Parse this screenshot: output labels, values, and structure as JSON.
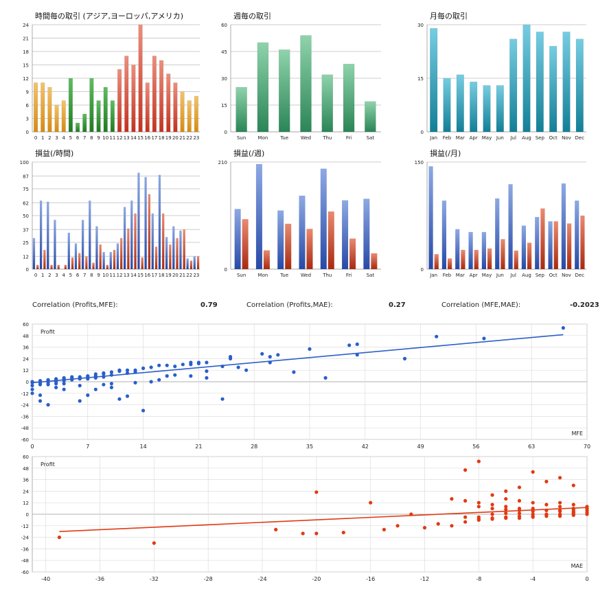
{
  "colors": {
    "orange": "#e3981b",
    "green": "#2e9532",
    "red": "#d2402d",
    "sea_green_top": "#8fd3ab",
    "sea_green_bottom": "#2a8556",
    "teal_top": "#76cde2",
    "teal_bottom": "#127f97",
    "blue_top": "#8ea9e3",
    "blue_bottom": "#2649a6",
    "red_top": "#e98b70",
    "red_bottom": "#a82a10",
    "scatter_blue": "#2a5fc9",
    "scatter_red": "#e03a12",
    "grid": "#bbbbbb"
  },
  "correlations": [
    {
      "label": "Correlation (Profits,MFE):",
      "value": "0.79"
    },
    {
      "label": "Correlation (Profits,MAE):",
      "value": "0.27"
    },
    {
      "label": "Correlation (MFE,MAE):",
      "value": "-0.2023"
    }
  ],
  "chart_data": [
    {
      "id": "hourly_trades",
      "type": "bar",
      "title": "時間毎の取引 (アジア,ヨーロッパ,アメリカ)",
      "ylim": [
        0,
        24
      ],
      "yticks": [
        "0",
        "3",
        "6",
        "9",
        "12",
        "15",
        "18",
        "21",
        "24"
      ],
      "categories": [
        "0",
        "1",
        "2",
        "3",
        "4",
        "5",
        "6",
        "7",
        "8",
        "9",
        "10",
        "11",
        "12",
        "13",
        "14",
        "15",
        "16",
        "17",
        "18",
        "19",
        "20",
        "21",
        "22",
        "23"
      ],
      "values": [
        11,
        11,
        10,
        6,
        7,
        12,
        2,
        4,
        12,
        7,
        10,
        7,
        14,
        17,
        15,
        24,
        11,
        17,
        16,
        13,
        11,
        9,
        7,
        8
      ],
      "session_colors": [
        "orange",
        "orange",
        "orange",
        "orange",
        "orange",
        "green",
        "green",
        "green",
        "green",
        "green",
        "green",
        "green",
        "red",
        "red",
        "red",
        "red",
        "red",
        "red",
        "red",
        "red",
        "red",
        "orange",
        "orange",
        "orange"
      ]
    },
    {
      "id": "weekday_trades",
      "type": "bar",
      "title": "週毎の取引",
      "ylim": [
        0,
        60
      ],
      "yticks": [
        "0",
        "15",
        "30",
        "45",
        "60"
      ],
      "categories": [
        "Sun",
        "Mon",
        "Tue",
        "Wed",
        "Thu",
        "Fri",
        "Sat"
      ],
      "values": [
        25,
        50,
        46,
        54,
        32,
        38,
        17
      ]
    },
    {
      "id": "monthly_trades",
      "type": "bar",
      "title": "月毎の取引",
      "ylim": [
        0,
        30
      ],
      "yticks": [
        "0",
        "15",
        "30"
      ],
      "categories": [
        "Jan",
        "Feb",
        "Mar",
        "Apr",
        "May",
        "Jun",
        "Jul",
        "Aug",
        "Sep",
        "Oct",
        "Nov",
        "Dec"
      ],
      "values": [
        29,
        15,
        16,
        14,
        13,
        13,
        26,
        30,
        28,
        24,
        28,
        26
      ]
    },
    {
      "id": "hourly_pnl",
      "type": "bar",
      "title": "損益(/時間)",
      "ylim": [
        0,
        100
      ],
      "yticks": [
        "0",
        "12",
        "25",
        "37",
        "50",
        "62",
        "75",
        "87",
        "100"
      ],
      "categories": [
        "0",
        "1",
        "2",
        "3",
        "4",
        "5",
        "6",
        "7",
        "8",
        "9",
        "10",
        "11",
        "12",
        "13",
        "14",
        "15",
        "16",
        "17",
        "18",
        "19",
        "20",
        "21",
        "22",
        "23"
      ],
      "series": [
        {
          "name": "profit",
          "values": [
            29,
            64,
            63,
            46,
            0,
            34,
            24,
            46,
            64,
            40,
            16,
            16,
            24,
            58,
            64,
            90,
            86,
            52,
            88,
            30,
            40,
            36,
            10,
            12
          ]
        },
        {
          "name": "loss",
          "values": [
            4,
            18,
            4,
            4,
            4,
            11,
            15,
            12,
            6,
            23,
            4,
            18,
            29,
            38,
            52,
            11,
            70,
            21,
            52,
            23,
            29,
            37,
            8,
            12
          ]
        }
      ]
    },
    {
      "id": "weekday_pnl",
      "type": "bar",
      "title": "損益(/週)",
      "ylim": [
        0,
        210
      ],
      "yticks": [
        "0",
        "210"
      ],
      "categories": [
        "Sun",
        "Mon",
        "Tue",
        "Wed",
        "Thu",
        "Fri",
        "Sat"
      ],
      "series": [
        {
          "name": "profit",
          "values": [
            118,
            206,
            115,
            144,
            197,
            135,
            138
          ]
        },
        {
          "name": "loss",
          "values": [
            98,
            37,
            89,
            79,
            113,
            60,
            31
          ]
        }
      ]
    },
    {
      "id": "monthly_pnl",
      "type": "bar",
      "title": "損益(/月)",
      "ylim": [
        0,
        150
      ],
      "yticks": [
        "0",
        "150"
      ],
      "categories": [
        "Jan",
        "Feb",
        "Mar",
        "Apr",
        "May",
        "Jun",
        "Jul",
        "Aug",
        "Sep",
        "Oct",
        "Nov",
        "Dec"
      ],
      "series": [
        {
          "name": "profit",
          "values": [
            144,
            96,
            56,
            52,
            52,
            99,
            119,
            61,
            73,
            67,
            120,
            96
          ]
        },
        {
          "name": "loss",
          "values": [
            21,
            15,
            27,
            27,
            29,
            42,
            26,
            37,
            85,
            67,
            64,
            75
          ]
        }
      ]
    },
    {
      "id": "profit_vs_mfe",
      "type": "scatter",
      "ylabel": "Profit",
      "xlabel": "MFE",
      "xlim": [
        0,
        70
      ],
      "ylim": [
        -60,
        60
      ],
      "xticks": [
        "0",
        "7",
        "14",
        "21",
        "28",
        "35",
        "42",
        "49",
        "56",
        "63",
        "70"
      ],
      "yticks": [
        "-60",
        "-48",
        "-36",
        "-24",
        "-12",
        "0",
        "12",
        "24",
        "36",
        "48",
        "60"
      ],
      "trendline": [
        [
          0,
          -1
        ],
        [
          67,
          49
        ]
      ],
      "points": [
        [
          67,
          56
        ],
        [
          51,
          47
        ],
        [
          57,
          45
        ],
        [
          40,
          38
        ],
        [
          41,
          39
        ],
        [
          35,
          34
        ],
        [
          31,
          28
        ],
        [
          30,
          26
        ],
        [
          29,
          29
        ],
        [
          41,
          28
        ],
        [
          47,
          24
        ],
        [
          25,
          24
        ],
        [
          25,
          26
        ],
        [
          22,
          20
        ],
        [
          21,
          19
        ],
        [
          20,
          18
        ],
        [
          21,
          20
        ],
        [
          20,
          20
        ],
        [
          18,
          16
        ],
        [
          19,
          18
        ],
        [
          24,
          16
        ],
        [
          16,
          17
        ],
        [
          17,
          17
        ],
        [
          15,
          15
        ],
        [
          14,
          14
        ],
        [
          13,
          12
        ],
        [
          12,
          12
        ],
        [
          11,
          11
        ],
        [
          11,
          12
        ],
        [
          10,
          10
        ],
        [
          9,
          8
        ],
        [
          8,
          8
        ],
        [
          9,
          9
        ],
        [
          7,
          6
        ],
        [
          6,
          5
        ],
        [
          5,
          5
        ],
        [
          4,
          4
        ],
        [
          3,
          3
        ],
        [
          2,
          2
        ],
        [
          1,
          1
        ],
        [
          2,
          1
        ],
        [
          1,
          0
        ],
        [
          3,
          2
        ],
        [
          4,
          3
        ],
        [
          5,
          4
        ],
        [
          6,
          4
        ],
        [
          7,
          5
        ],
        [
          8,
          6
        ],
        [
          10,
          7
        ],
        [
          12,
          9
        ],
        [
          13,
          10
        ],
        [
          22,
          11
        ],
        [
          27,
          12
        ],
        [
          26,
          15
        ],
        [
          30,
          20
        ],
        [
          33,
          10
        ],
        [
          37,
          4
        ],
        [
          17,
          6
        ],
        [
          18,
          7
        ],
        [
          20,
          6
        ],
        [
          22,
          4
        ],
        [
          24,
          -18
        ],
        [
          14,
          -30
        ],
        [
          11,
          -18
        ],
        [
          12,
          -15
        ],
        [
          10,
          -6
        ],
        [
          9,
          -3
        ],
        [
          7,
          -14
        ],
        [
          6,
          -20
        ],
        [
          4,
          -8
        ],
        [
          3,
          -6
        ],
        [
          2,
          -3
        ],
        [
          1,
          -20
        ],
        [
          1,
          -14
        ],
        [
          0,
          -12
        ],
        [
          0,
          -8
        ],
        [
          0,
          -4
        ],
        [
          2,
          -24
        ],
        [
          4,
          -2
        ],
        [
          6,
          -4
        ],
        [
          8,
          -8
        ],
        [
          10,
          -2
        ],
        [
          13,
          -1
        ],
        [
          15,
          0
        ],
        [
          16,
          2
        ],
        [
          3,
          -2
        ],
        [
          1,
          -3
        ],
        [
          0,
          0
        ],
        [
          0,
          -1
        ],
        [
          1,
          -1
        ],
        [
          1,
          -2
        ],
        [
          2,
          -1
        ],
        [
          3,
          0
        ],
        [
          3,
          1
        ],
        [
          4,
          1
        ],
        [
          5,
          2
        ],
        [
          6,
          3
        ],
        [
          7,
          3
        ],
        [
          8,
          4
        ],
        [
          9,
          5
        ]
      ]
    },
    {
      "id": "profit_vs_mae",
      "type": "scatter",
      "ylabel": "Profit",
      "xlabel": "MAE",
      "xlim": [
        -41,
        0
      ],
      "ylim": [
        -60,
        60
      ],
      "xticks": [
        "-40",
        "-36",
        "-32",
        "-28",
        "-24",
        "-20",
        "-16",
        "-12",
        "-8",
        "-4",
        "0"
      ],
      "yticks": [
        "-60",
        "-48",
        "-36",
        "-24",
        "-12",
        "0",
        "12",
        "24",
        "36",
        "48",
        "60"
      ],
      "trendline": [
        [
          -39,
          -18
        ],
        [
          0,
          7
        ]
      ],
      "points": [
        [
          -39,
          -24
        ],
        [
          -32,
          -30
        ],
        [
          -23,
          -16
        ],
        [
          -21,
          -20
        ],
        [
          -20,
          -20
        ],
        [
          -18,
          -19
        ],
        [
          -15,
          -16
        ],
        [
          -14,
          -12
        ],
        [
          -12,
          -14
        ],
        [
          -13,
          0
        ],
        [
          -16,
          12
        ],
        [
          -20,
          23
        ],
        [
          -9,
          -8
        ],
        [
          -8,
          -6
        ],
        [
          -7,
          -4
        ],
        [
          -6,
          -3
        ],
        [
          -5,
          -2
        ],
        [
          -4,
          -2
        ],
        [
          -3,
          -1
        ],
        [
          -2,
          -1
        ],
        [
          -1,
          0
        ],
        [
          -8,
          55
        ],
        [
          -9,
          46
        ],
        [
          -4,
          44
        ],
        [
          -2,
          38
        ],
        [
          -1,
          30
        ],
        [
          -3,
          34
        ],
        [
          -5,
          28
        ],
        [
          -6,
          24
        ],
        [
          -7,
          20
        ],
        [
          -6,
          16
        ],
        [
          -5,
          14
        ],
        [
          -4,
          12
        ],
        [
          -3,
          10
        ],
        [
          -2,
          8
        ],
        [
          -1,
          6
        ],
        [
          0,
          4
        ],
        [
          0,
          2
        ],
        [
          -1,
          2
        ],
        [
          -2,
          3
        ],
        [
          -3,
          4
        ],
        [
          -4,
          6
        ],
        [
          -5,
          6
        ],
        [
          -6,
          8
        ],
        [
          -7,
          10
        ],
        [
          -8,
          12
        ],
        [
          -9,
          14
        ],
        [
          -10,
          16
        ],
        [
          -11,
          -10
        ],
        [
          -10,
          -12
        ],
        [
          -8,
          -3
        ],
        [
          -9,
          -3
        ],
        [
          -7,
          0
        ],
        [
          -6,
          1
        ],
        [
          -5,
          1
        ],
        [
          -4,
          0
        ],
        [
          -3,
          0
        ],
        [
          -2,
          0
        ],
        [
          -1,
          1
        ],
        [
          0,
          0
        ],
        [
          -1,
          -1
        ],
        [
          -2,
          -2
        ],
        [
          -3,
          -2
        ],
        [
          -4,
          -3
        ],
        [
          -5,
          -4
        ],
        [
          -6,
          -4
        ],
        [
          -7,
          -5
        ],
        [
          -8,
          -5
        ],
        [
          -1,
          3
        ],
        [
          -2,
          4
        ],
        [
          -1,
          5
        ],
        [
          0,
          6
        ],
        [
          0,
          8
        ],
        [
          -1,
          10
        ],
        [
          -2,
          12
        ],
        [
          -8,
          8
        ],
        [
          -7,
          6
        ],
        [
          -6,
          5
        ],
        [
          -5,
          4
        ],
        [
          -4,
          3
        ]
      ]
    }
  ]
}
